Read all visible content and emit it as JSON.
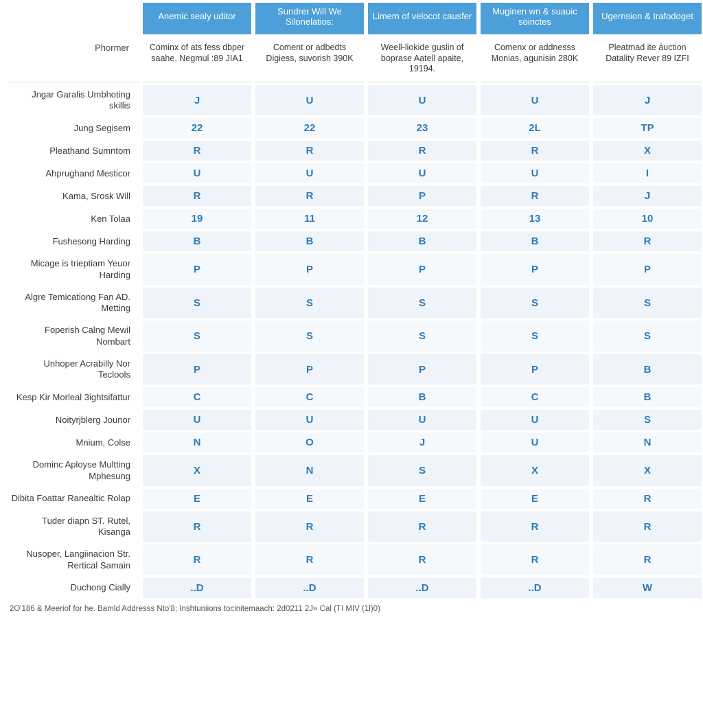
{
  "colors": {
    "header_bg": "#4c9fd8",
    "header_text": "#ffffff",
    "cell_bg": "#eef4f9",
    "cell_bg_alt": "#f5f9fc",
    "cell_text": "#2f7ab8",
    "label_text": "#3a3a3a",
    "divider": "#d9d9d9"
  },
  "table": {
    "row_head_label": "Phormer",
    "top_headers": [
      "Anemic sealy uditor",
      "Sundrer Will We Silonelatios:",
      "Limem of velocot causfer",
      "Muginen wn & suauic söinctes",
      "Ugernsion & Irafodoget"
    ],
    "sub_headers": [
      "Cominx of ats fess dbper saahe, Negmul :89 JIA1",
      "Coment or adbedts Digiess, suvorish 390K",
      "Weell-liokide guslin of boprase Aatell apaite, 19194.",
      "Comenx or addnesss Monias, agunisin 280K",
      "Pleatmad ite áuction Datality Rever 89 IZFI"
    ],
    "rows": [
      {
        "label": "Jngar Garalis Umbhoting skillis",
        "cells": [
          "J",
          "U",
          "U",
          "U",
          "J"
        ]
      },
      {
        "label": "Jung Segisem",
        "cells": [
          "22",
          "22",
          "23",
          "2L",
          "TP"
        ]
      },
      {
        "label": "Pleathand Sumntom",
        "cells": [
          "R",
          "R",
          "R",
          "R",
          "X"
        ]
      },
      {
        "label": "Ahprughand Mesticor",
        "cells": [
          "U",
          "U",
          "U",
          "U",
          "I"
        ]
      },
      {
        "label": "Kama, Srosk Will",
        "cells": [
          "R",
          "R",
          "P",
          "R",
          "J"
        ]
      },
      {
        "label": "Ken Tolaa",
        "cells": [
          "19",
          "11",
          "12",
          "13",
          "10"
        ]
      },
      {
        "label": "Fushesong Harding",
        "cells": [
          "B",
          "B",
          "B",
          "B",
          "R"
        ]
      },
      {
        "label": "Micage is trieptiam Yeuor Harding",
        "cells": [
          "P",
          "P",
          "P",
          "P",
          "P"
        ]
      },
      {
        "label": "Algre Temicationg Fan AD. Metting",
        "cells": [
          "S",
          "S",
          "S",
          "S",
          "S"
        ]
      },
      {
        "label": "Foperish Calng Mewil Nombart",
        "cells": [
          "S",
          "S",
          "S",
          "S",
          "S"
        ]
      },
      {
        "label": "Unhoper Acrabilly Nor Teclools",
        "cells": [
          "P",
          "P",
          "P",
          "P",
          "B"
        ]
      },
      {
        "label": "Kesp Kir Morleal 3ightsifattur",
        "cells": [
          "C",
          "C",
          "B",
          "C",
          "B"
        ]
      },
      {
        "label": "Noityrjblerg Jounor",
        "cells": [
          "U",
          "U",
          "U",
          "U",
          "S"
        ]
      },
      {
        "label": "Mnium, Colse",
        "cells": [
          "N",
          "O",
          "J",
          "U",
          "N"
        ]
      },
      {
        "label": "Dominc Aployse Multting Mphesung",
        "cells": [
          "X",
          "N",
          "S",
          "X",
          "X"
        ]
      },
      {
        "label": "Dibita Foattar Ranealtic Rolap",
        "cells": [
          "E",
          "E",
          "E",
          "E",
          "R"
        ]
      },
      {
        "label": "Tuder diapn ST. Rutel, Kisanga",
        "cells": [
          "R",
          "R",
          "R",
          "R",
          "R"
        ]
      },
      {
        "label": "Nusoper, Langiinacion Str. Rertical Samain",
        "cells": [
          "R",
          "R",
          "R",
          "R",
          "R"
        ]
      },
      {
        "label": "Duchong Cially",
        "cells": [
          "..D",
          "..D",
          "..D",
          "..D",
          "W"
        ]
      }
    ]
  },
  "footnote": "2O'186 & Meeriof for he. Bamld Addresss Nto'8; Inshtuniions tocinitemaach: 2d0211 2J» Cal (TI MIV (1l)0)"
}
